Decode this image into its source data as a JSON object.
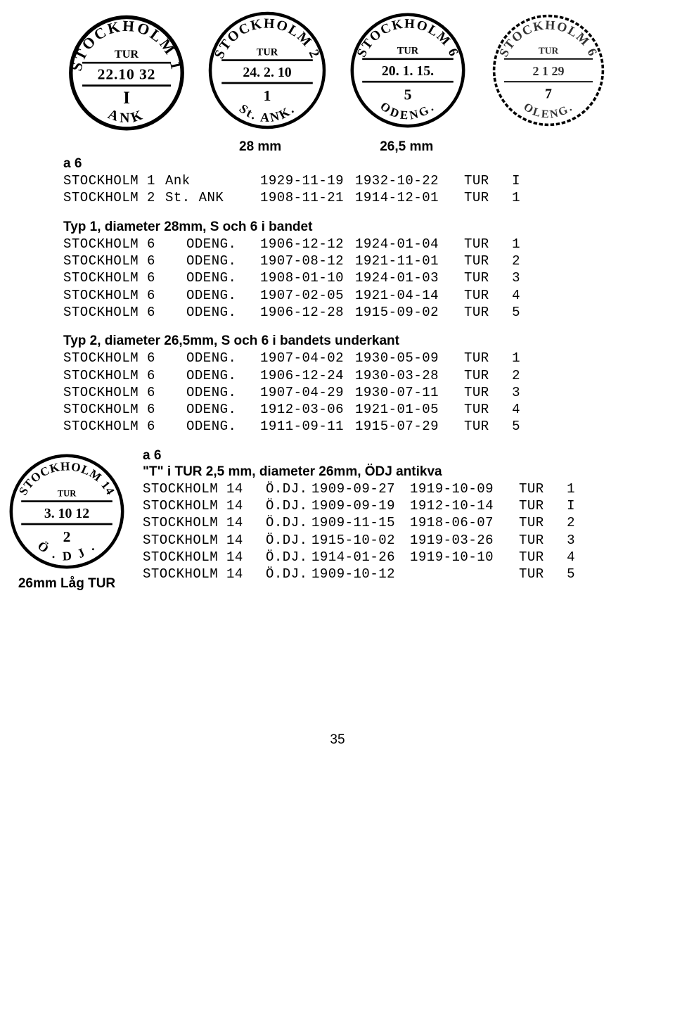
{
  "dimensions": {
    "d28": "28 mm",
    "d265": "26,5 mm"
  },
  "section_a": {
    "label": "a 6",
    "rows": [
      {
        "c1": "STOCKHOLM 1",
        "c2": "Ank",
        "c3": "1929-11-19",
        "c4": "1932-10-22",
        "c5": "TUR",
        "c6": "I"
      },
      {
        "c1": "STOCKHOLM 2",
        "c2": "St. ANK",
        "c3": "1908-11-21",
        "c4": "1914-12-01",
        "c5": "TUR",
        "c6": "1"
      }
    ]
  },
  "section_typ1": {
    "heading": "Typ 1, diameter 28mm, S och 6 i bandet",
    "rows": [
      {
        "c1": "STOCKHOLM 6",
        "c2": "ODENG.",
        "c3": "1906-12-12",
        "c4": "1924-01-04",
        "c5": "TUR",
        "c6": "1"
      },
      {
        "c1": "STOCKHOLM 6",
        "c2": "ODENG.",
        "c3": "1907-08-12",
        "c4": "1921-11-01",
        "c5": "TUR",
        "c6": "2"
      },
      {
        "c1": "STOCKHOLM 6",
        "c2": "ODENG.",
        "c3": "1908-01-10",
        "c4": "1924-01-03",
        "c5": "TUR",
        "c6": "3"
      },
      {
        "c1": "STOCKHOLM 6",
        "c2": "ODENG.",
        "c3": "1907-02-05",
        "c4": "1921-04-14",
        "c5": "TUR",
        "c6": "4"
      },
      {
        "c1": "STOCKHOLM 6",
        "c2": "ODENG.",
        "c3": "1906-12-28",
        "c4": "1915-09-02",
        "c5": "TUR",
        "c6": "5"
      }
    ]
  },
  "section_typ2": {
    "heading": "Typ 2, diameter 26,5mm, S och 6 i bandets underkant",
    "rows": [
      {
        "c1": "STOCKHOLM 6",
        "c2": "ODENG.",
        "c3": "1907-04-02",
        "c4": "1930-05-09",
        "c5": "TUR",
        "c6": "1"
      },
      {
        "c1": "STOCKHOLM 6",
        "c2": "ODENG.",
        "c3": "1906-12-24",
        "c4": "1930-03-28",
        "c5": "TUR",
        "c6": "2"
      },
      {
        "c1": "STOCKHOLM 6",
        "c2": "ODENG.",
        "c3": "1907-04-29",
        "c4": "1930-07-11",
        "c5": "TUR",
        "c6": "3"
      },
      {
        "c1": "STOCKHOLM 6",
        "c2": "ODENG.",
        "c3": "1912-03-06",
        "c4": "1921-01-05",
        "c5": "TUR",
        "c6": "4"
      },
      {
        "c1": "STOCKHOLM 6",
        "c2": "ODENG.",
        "c3": "1911-09-11",
        "c4": "1915-07-29",
        "c5": "TUR",
        "c6": "5"
      }
    ]
  },
  "section_b": {
    "label": "a 6",
    "heading": "\"T\" i TUR 2,5 mm, diameter 26mm, ÖDJ antikva",
    "rows": [
      {
        "d1": "STOCKHOLM 14",
        "d2": "Ö.DJ.",
        "d3": "1909-09-27",
        "d4": "1919-10-09",
        "d5": "TUR",
        "d6": "1"
      },
      {
        "d1": "STOCKHOLM 14",
        "d2": "Ö.DJ.",
        "d3": "1909-09-19",
        "d4": "1912-10-14",
        "d5": "TUR",
        "d6": "I"
      },
      {
        "d1": "STOCKHOLM 14",
        "d2": "Ö.DJ.",
        "d3": "1909-11-15",
        "d4": "1918-06-07",
        "d5": "TUR",
        "d6": "2"
      },
      {
        "d1": "STOCKHOLM 14",
        "d2": "Ö.DJ.",
        "d3": "1915-10-02",
        "d4": "1919-03-26",
        "d5": "TUR",
        "d6": "3"
      },
      {
        "d1": "STOCKHOLM 14",
        "d2": "Ö.DJ.",
        "d3": "1914-01-26",
        "d4": "1919-10-10",
        "d5": "TUR",
        "d6": "4"
      },
      {
        "d1": "STOCKHOLM 14",
        "d2": "Ö.DJ.",
        "d3": "1909-10-12",
        "d4": "",
        "d5": "TUR",
        "d6": "5"
      }
    ]
  },
  "stamp_caption": "26mm Låg TUR",
  "page_number": "35",
  "stamps": {
    "s1": {
      "top": "TUR",
      "mid": "22.10 32",
      "bot": "I",
      "arc_top": "STOCKHOLM 1",
      "arc_bot": "ANK"
    },
    "s2": {
      "top": "TUR",
      "mid": "24.   2.  10",
      "bot": "1",
      "arc_top": "STOCKHOLM 2",
      "arc_bot": "St. ANK."
    },
    "s3": {
      "top": "TUR",
      "mid": "20. 1. 15.",
      "bot": "5",
      "arc_top": "STOCKHOLM 6",
      "arc_bot": "ODENG."
    },
    "s4": {
      "top": "TUR",
      "mid": "2   1  29",
      "bot": "7",
      "arc_top": "STOCKHOLM 6",
      "arc_bot": "OLENG."
    },
    "s5": {
      "top": "TUR",
      "mid": "3. 10 12",
      "bot": "2",
      "arc_top": "STOCKHOLM 14",
      "arc_bot": "Ö . D J ."
    }
  }
}
